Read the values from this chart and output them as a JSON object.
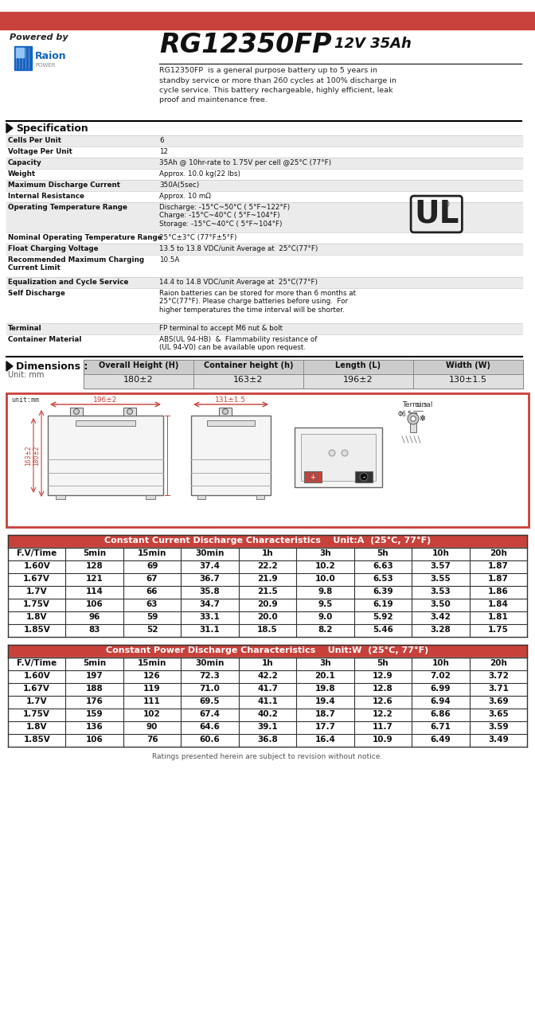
{
  "title_model": "RG12350FP",
  "title_spec": "12V 35Ah",
  "powered_by": "Powered by",
  "description": "RG12350FP  is a general purpose battery up to 5 years in\nstandby service or more than 260 cycles at 100% discharge in\ncycle service. This battery rechargeable, highly efficient, leak\nproof and maintenance free.",
  "header_bar_color": "#C8413A",
  "spec_header": "Specification",
  "spec_rows": [
    [
      "Cells Per Unit",
      "6"
    ],
    [
      "Voltage Per Unit",
      "12"
    ],
    [
      "Capacity",
      "35Ah @ 10hr-rate to 1.75V per cell @25°C (77°F)"
    ],
    [
      "Weight",
      "Approx. 10.0 kg(22 lbs)"
    ],
    [
      "Maximum Discharge Current",
      "350A(5sec)"
    ],
    [
      "Internal Resistance",
      "Approx. 10 mΩ"
    ],
    [
      "Operating Temperature Range",
      "Discharge: -15°C~50°C ( 5°F~122°F)\nCharge: -15°C~40°C ( 5°F~104°F)\nStorage: -15°C~40°C ( 5°F~104°F)"
    ],
    [
      "Nominal Operating Temperature Range",
      "25°C±3°C (77°F±5°F)"
    ],
    [
      "Float Charging Voltage",
      "13.5 to 13.8 VDC/unit Average at  25°C(77°F)"
    ],
    [
      "Recommended Maximum Charging\nCurrent Limit",
      "10.5A"
    ],
    [
      "Equalization and Cycle Service",
      "14.4 to 14.8 VDC/unit Average at  25°C(77°F)"
    ],
    [
      "Self Discharge",
      "Raion batteries can be stored for more than 6 months at\n25°C(77°F). Please charge batteries before using.  For\nhigher temperatures the time interval will be shorter."
    ],
    [
      "Terminal",
      "FP terminal to accept M6 nut & bolt"
    ],
    [
      "Container Material",
      "ABS(UL 94-HB)  &  Flammability resistance of\n(UL 94-V0) can be available upon request."
    ]
  ],
  "spec_row_heights": [
    14,
    14,
    14,
    14,
    14,
    14,
    38,
    14,
    14,
    28,
    14,
    44,
    14,
    28
  ],
  "dim_header": "Dimensions :",
  "dim_unit": "Unit: mm",
  "dim_cols": [
    "Overall Height (H)",
    "Container height (h)",
    "Length (L)",
    "Width (W)"
  ],
  "dim_vals": [
    "180±2",
    "163±2",
    "196±2",
    "130±1.5"
  ],
  "dim_header_bg": "#CCCCCC",
  "dim_val_bg": "#E0E0E0",
  "cc_title": "Constant Current Discharge Characteristics",
  "cc_unit": "Unit:A  (25°C, 77°F)",
  "cp_title": "Constant Power Discharge Characteristics",
  "cp_unit": "Unit:W  (25°C, 77°F)",
  "table_header_bg": "#C8413A",
  "table_header_fg": "#FFFFFF",
  "table_cols": [
    "F.V/Time",
    "5min",
    "15min",
    "30min",
    "1h",
    "3h",
    "5h",
    "10h",
    "20h"
  ],
  "cc_data": [
    [
      "1.60V",
      "128",
      "69",
      "37.4",
      "22.2",
      "10.2",
      "6.63",
      "3.57",
      "1.87"
    ],
    [
      "1.67V",
      "121",
      "67",
      "36.7",
      "21.9",
      "10.0",
      "6.53",
      "3.55",
      "1.87"
    ],
    [
      "1.7V",
      "114",
      "66",
      "35.8",
      "21.5",
      "9.8",
      "6.39",
      "3.53",
      "1.86"
    ],
    [
      "1.75V",
      "106",
      "63",
      "34.7",
      "20.9",
      "9.5",
      "6.19",
      "3.50",
      "1.84"
    ],
    [
      "1.8V",
      "96",
      "59",
      "33.1",
      "20.0",
      "9.0",
      "5.92",
      "3.42",
      "1.81"
    ],
    [
      "1.85V",
      "83",
      "52",
      "31.1",
      "18.5",
      "8.2",
      "5.46",
      "3.28",
      "1.75"
    ]
  ],
  "cp_data": [
    [
      "1.60V",
      "197",
      "126",
      "72.3",
      "42.2",
      "20.1",
      "12.9",
      "7.02",
      "3.72"
    ],
    [
      "1.67V",
      "188",
      "119",
      "71.0",
      "41.7",
      "19.8",
      "12.8",
      "6.99",
      "3.71"
    ],
    [
      "1.7V",
      "176",
      "111",
      "69.5",
      "41.1",
      "19.4",
      "12.6",
      "6.94",
      "3.69"
    ],
    [
      "1.75V",
      "159",
      "102",
      "67.4",
      "40.2",
      "18.7",
      "12.2",
      "6.86",
      "3.65"
    ],
    [
      "1.8V",
      "136",
      "90",
      "64.6",
      "39.1",
      "17.7",
      "11.7",
      "6.71",
      "3.59"
    ],
    [
      "1.85V",
      "106",
      "76",
      "60.6",
      "36.8",
      "16.4",
      "10.9",
      "6.49",
      "3.49"
    ]
  ],
  "footer": "Ratings presented herein are subject to revision without notice.",
  "bg_color": "#FFFFFF",
  "diagram_border": "#C8413A"
}
